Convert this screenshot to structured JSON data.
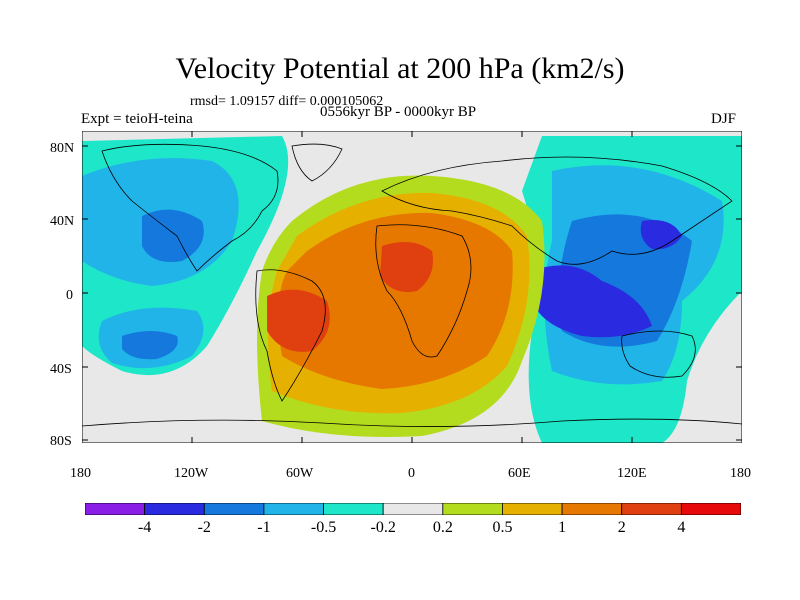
{
  "title": "Velocity Potential at 200 hPa (km2/s)",
  "stats": "rmsd= 1.09157 diff= 0.000105062",
  "experiment": "Expt = teioH-teina",
  "period": "0556kyr BP - 0000kyr BP",
  "season": "DJF",
  "lat_ticks": [
    "80N",
    "40N",
    "0",
    "40S",
    "80S"
  ],
  "lon_ticks": [
    "180",
    "120W",
    "60W",
    "0",
    "60E",
    "120E",
    "180"
  ],
  "colorbar": {
    "labels": [
      "-4",
      "-2",
      "-1",
      "-0.5",
      "-0.2",
      "0.2",
      "0.5",
      "1",
      "2",
      "4"
    ],
    "colors": [
      "#8a1ee6",
      "#2a2ae0",
      "#1478dc",
      "#20b4e8",
      "#1ee6c8",
      "#e8e8e8",
      "#b4dc1e",
      "#e6b000",
      "#e67800",
      "#e04010",
      "#e60a0a"
    ]
  },
  "palette": {
    "strong_negative": "#2a2ae0",
    "negative": "#1478dc",
    "light_negative": "#20b4e8",
    "weak_negative": "#1ee6c8",
    "neutral": "#e8e8e8",
    "weak_positive": "#b4dc1e",
    "positive": "#e6b000",
    "orange": "#e67800",
    "strong_positive": "#e04010"
  }
}
